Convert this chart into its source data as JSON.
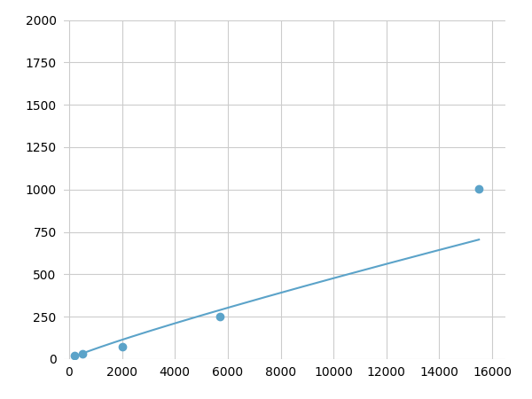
{
  "x": [
    200,
    500,
    2000,
    5700,
    15500
  ],
  "y": [
    20,
    30,
    75,
    250,
    1005
  ],
  "line_color": "#5ba3c9",
  "marker_color": "#5ba3c9",
  "marker_size": 6,
  "line_width": 1.5,
  "xlim": [
    -200,
    16500
  ],
  "ylim": [
    0,
    2000
  ],
  "xticks": [
    0,
    2000,
    4000,
    6000,
    8000,
    10000,
    12000,
    14000,
    16000
  ],
  "yticks": [
    0,
    250,
    500,
    750,
    1000,
    1250,
    1500,
    1750,
    2000
  ],
  "grid_color": "#cccccc",
  "background_color": "#ffffff",
  "tick_label_fontsize": 10
}
